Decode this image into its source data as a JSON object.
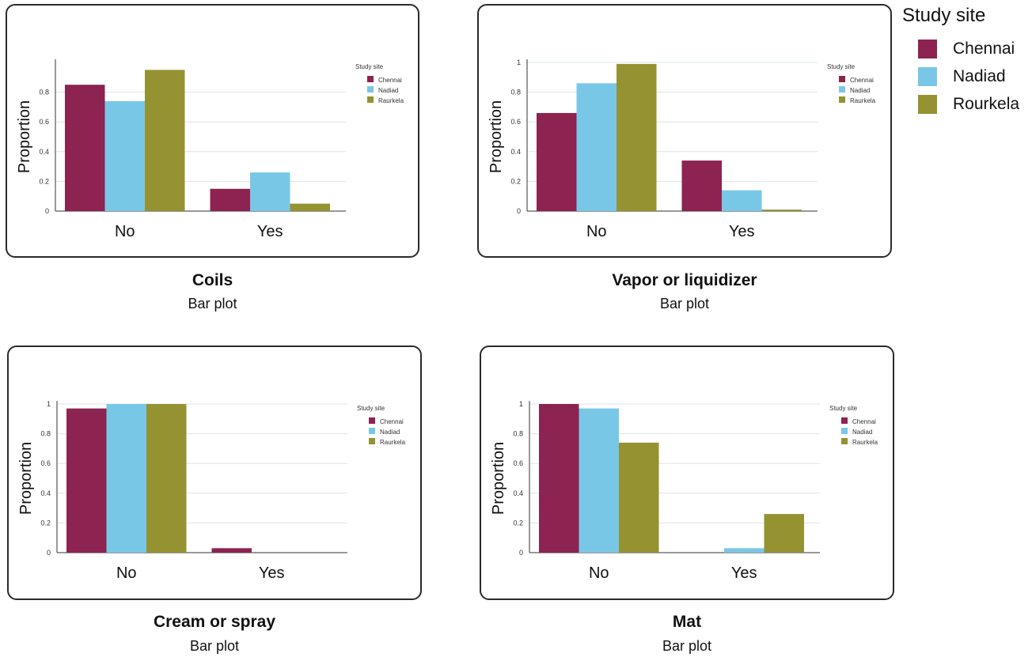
{
  "colors": {
    "Chennai": "#8c2350",
    "Nadiad": "#79c7e7",
    "Raurkela": "#959232"
  },
  "main_legend": {
    "title": "Study site",
    "items": [
      {
        "label": "Chennai",
        "color": "#8c2350"
      },
      {
        "label": "Nadiad",
        "color": "#79c7e7"
      },
      {
        "label": "Rourkela",
        "color": "#959232"
      }
    ]
  },
  "chart_data": [
    {
      "type": "bar",
      "title": "Coils",
      "subtitle": "Bar plot",
      "ylabel": "Proportion",
      "xlabel": "",
      "categories": [
        "No",
        "Yes"
      ],
      "yticks": [
        "0",
        "0.2",
        "0.4",
        "0.6",
        "0.8"
      ],
      "ylim": [
        0,
        1
      ],
      "legend_title": "Study site",
      "legend_position": "top-right",
      "series": [
        {
          "name": "Chennai",
          "values": [
            0.85,
            0.15
          ]
        },
        {
          "name": "Nadiad",
          "values": [
            0.74,
            0.26
          ]
        },
        {
          "name": "Raurkela",
          "values": [
            0.95,
            0.05
          ]
        }
      ]
    },
    {
      "type": "bar",
      "title": "Vapor or liquidizer",
      "subtitle": "Bar plot",
      "ylabel": "Proportion",
      "xlabel": "",
      "categories": [
        "No",
        "Yes"
      ],
      "yticks": [
        "0",
        "0.2",
        "0.4",
        "0.6",
        "0.8",
        "1"
      ],
      "ylim": [
        0,
        1
      ],
      "legend_title": "Study site",
      "legend_position": "top-right",
      "series": [
        {
          "name": "Chennai",
          "values": [
            0.66,
            0.34
          ]
        },
        {
          "name": "Nadiad",
          "values": [
            0.86,
            0.14
          ]
        },
        {
          "name": "Raurkela",
          "values": [
            0.99,
            0.01
          ]
        }
      ]
    },
    {
      "type": "bar",
      "title": "Cream or spray",
      "subtitle": "Bar plot",
      "ylabel": "Proportion",
      "xlabel": "",
      "categories": [
        "No",
        "Yes"
      ],
      "yticks": [
        "0",
        "0.2",
        "0.4",
        "0.6",
        "0.8",
        "1"
      ],
      "ylim": [
        0,
        1
      ],
      "legend_title": "Study site",
      "legend_position": "top-right",
      "series": [
        {
          "name": "Chennai",
          "values": [
            0.97,
            0.03
          ]
        },
        {
          "name": "Nadiad",
          "values": [
            1.0,
            0.0
          ]
        },
        {
          "name": "Raurkela",
          "values": [
            1.0,
            0.0
          ]
        }
      ]
    },
    {
      "type": "bar",
      "title": "Mat",
      "subtitle": "Bar plot",
      "ylabel": "Proportion",
      "xlabel": "",
      "categories": [
        "No",
        "Yes"
      ],
      "yticks": [
        "0",
        "0.2",
        "0.4",
        "0.6",
        "0.8",
        "1"
      ],
      "ylim": [
        0,
        1
      ],
      "legend_title": "Study site",
      "legend_position": "top-right",
      "series": [
        {
          "name": "Chennai",
          "values": [
            1.0,
            0.0
          ]
        },
        {
          "name": "Nadiad",
          "values": [
            0.97,
            0.03
          ]
        },
        {
          "name": "Raurkela",
          "values": [
            0.74,
            0.26
          ]
        }
      ]
    }
  ]
}
